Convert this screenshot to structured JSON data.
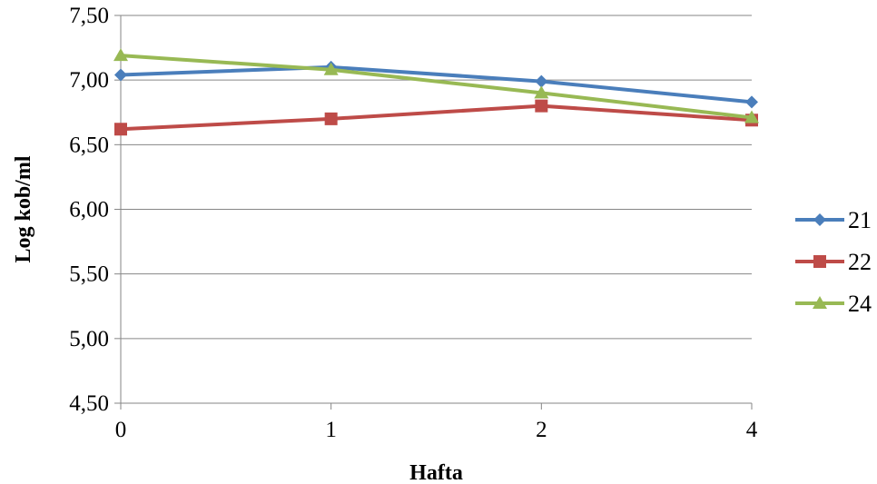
{
  "chart_data": {
    "type": "line",
    "title": "",
    "xlabel": "Hafta",
    "ylabel": "Log kob/ml",
    "categories": [
      "0",
      "1",
      "2",
      "4"
    ],
    "ylim": [
      4.5,
      7.5
    ],
    "yticks": [
      "4,50",
      "5,00",
      "5,50",
      "6,00",
      "6,50",
      "7,00",
      "7,50"
    ],
    "ytick_values": [
      4.5,
      5.0,
      5.5,
      6.0,
      6.5,
      7.0,
      7.5
    ],
    "grid": true,
    "legend_position": "right",
    "series": [
      {
        "name": "21",
        "values": [
          7.04,
          7.1,
          6.99,
          6.83
        ],
        "color": "#4a7ebb",
        "marker": "diamond"
      },
      {
        "name": "22",
        "values": [
          6.62,
          6.7,
          6.8,
          6.69
        ],
        "color": "#be4b48",
        "marker": "square"
      },
      {
        "name": "24",
        "values": [
          7.19,
          7.08,
          6.9,
          6.71
        ],
        "color": "#98b954",
        "marker": "triangle"
      }
    ]
  }
}
